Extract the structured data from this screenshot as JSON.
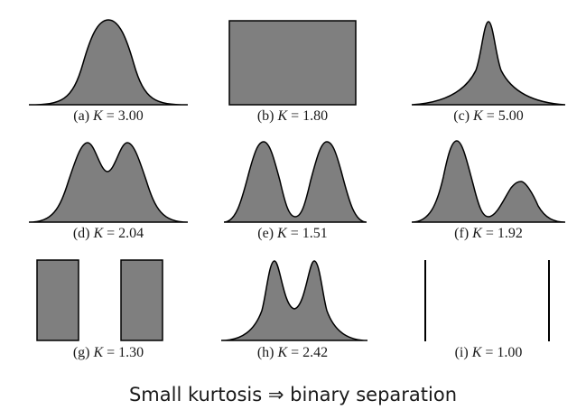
{
  "panels": [
    {
      "id": "a",
      "prefix": "(a) ",
      "kvar": "K",
      "eq": " = ",
      "value": "3.00",
      "shape": "gaussian"
    },
    {
      "id": "b",
      "prefix": "(b) ",
      "kvar": "K",
      "eq": " = ",
      "value": "1.80",
      "shape": "uniform"
    },
    {
      "id": "c",
      "prefix": "(c) ",
      "kvar": "K",
      "eq": " = ",
      "value": "5.00",
      "shape": "peaked"
    },
    {
      "id": "d",
      "prefix": "(d) ",
      "kvar": "K",
      "eq": " = ",
      "value": "2.04",
      "shape": "close-bimodal"
    },
    {
      "id": "e",
      "prefix": "(e) ",
      "kvar": "K",
      "eq": " = ",
      "value": "1.51",
      "shape": "separated-bimodal"
    },
    {
      "id": "f",
      "prefix": "(f) ",
      "kvar": "K",
      "eq": " = ",
      "value": "1.92",
      "shape": "asymmetric-bimodal"
    },
    {
      "id": "g",
      "prefix": "(g) ",
      "kvar": "K",
      "eq": " = ",
      "value": "1.30",
      "shape": "two-uniform-blocks"
    },
    {
      "id": "h",
      "prefix": "(h) ",
      "kvar": "K",
      "eq": " = ",
      "value": "2.42",
      "shape": "heavy-tailed-bimodal"
    },
    {
      "id": "i",
      "prefix": "(i) ",
      "kvar": "K",
      "eq": " = ",
      "value": "1.00",
      "shape": "two-spikes"
    }
  ],
  "caption": "Small kurtosis ⇒ binary separation",
  "colors": {
    "fill": "#7f7f7f",
    "stroke": "#000000",
    "text": "#1a1a1a"
  }
}
